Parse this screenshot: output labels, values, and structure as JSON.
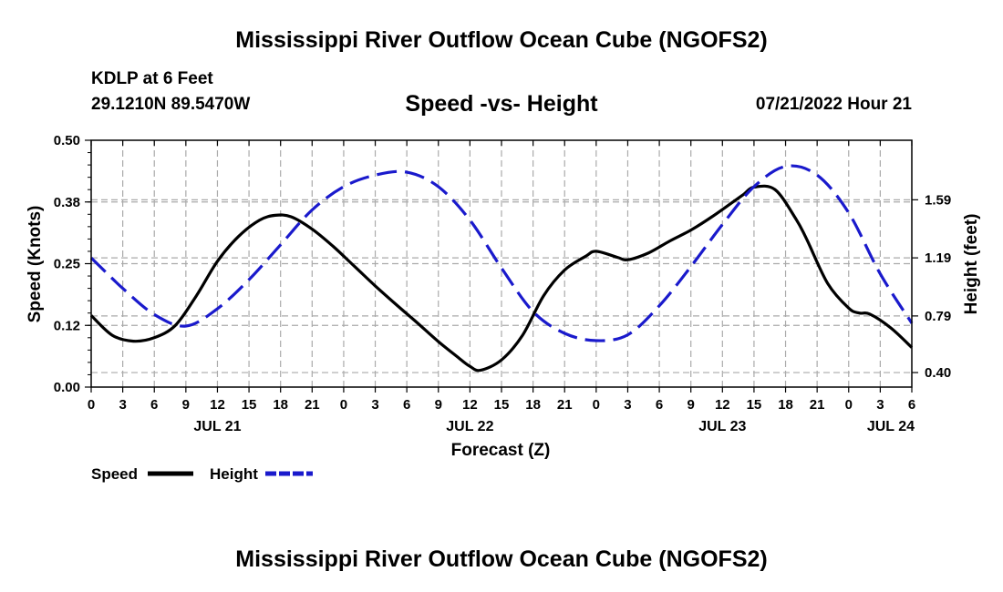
{
  "header": {
    "title": "Mississippi River Outflow Ocean Cube (NGOFS2)",
    "station": "KDLP at 6 Feet",
    "coords": "29.1210N  89.5470W",
    "subtitle": "Speed -vs- Height",
    "datetime": "07/21/2022 Hour 21"
  },
  "footer": {
    "title": "Mississippi River Outflow Ocean Cube (NGOFS2)"
  },
  "colors": {
    "speed": "#000000",
    "height": "#1a1acc",
    "grid": "#aaaaaa"
  },
  "chart_data": {
    "type": "line",
    "title": "Speed -vs- Height",
    "xlabel": "Forecast (Z)",
    "ylabel": "Speed (Knots)",
    "y2label": "Height (feet)",
    "x_range_hours": [
      0,
      78
    ],
    "ylim": [
      0,
      0.5
    ],
    "y2lim": [
      0.3,
      2.0
    ],
    "x_tick_hours": [
      0,
      3,
      6,
      9,
      12,
      15,
      18,
      21,
      24,
      27,
      30,
      33,
      36,
      39,
      42,
      45,
      48,
      51,
      54,
      57,
      60,
      63,
      66,
      69,
      72,
      75,
      78
    ],
    "x_tick_labels": [
      "0",
      "3",
      "6",
      "9",
      "12",
      "15",
      "18",
      "21",
      "0",
      "3",
      "6",
      "9",
      "12",
      "15",
      "18",
      "21",
      "0",
      "3",
      "6",
      "9",
      "12",
      "15",
      "18",
      "21",
      "0",
      "3",
      "6"
    ],
    "date_labels": [
      {
        "hour": 12,
        "label": "JUL 21"
      },
      {
        "hour": 36,
        "label": "JUL 22"
      },
      {
        "hour": 60,
        "label": "JUL 23"
      },
      {
        "hour": 76,
        "label": "JUL 24"
      }
    ],
    "y_ticks": [
      0.0,
      0.125,
      0.25,
      0.375,
      0.5
    ],
    "y_tick_labels": [
      "0.00",
      "0.12",
      "0.25",
      "0.38",
      "0.50"
    ],
    "y2_ticks": [
      0.4,
      0.79,
      1.19,
      1.59
    ],
    "y2_tick_labels": [
      "0.40",
      "0.79",
      "1.19",
      "1.59"
    ],
    "legend": [
      "Speed",
      "Height"
    ],
    "series": [
      {
        "name": "Speed",
        "axis": "left",
        "style": "solid",
        "x": [
          0,
          2,
          4,
          6,
          8,
          10,
          12,
          14,
          16,
          17.5,
          19,
          21,
          23,
          25,
          27,
          29,
          31,
          33,
          35,
          36,
          37,
          39,
          41,
          43,
          45,
          47,
          48,
          50,
          51,
          53,
          55,
          57,
          59,
          61,
          62,
          63,
          65,
          67,
          68,
          70,
          72,
          73,
          74,
          76,
          78
        ],
        "values": [
          0.145,
          0.105,
          0.093,
          0.1,
          0.125,
          0.185,
          0.255,
          0.305,
          0.338,
          0.348,
          0.345,
          0.32,
          0.285,
          0.245,
          0.205,
          0.167,
          0.13,
          0.092,
          0.058,
          0.042,
          0.034,
          0.055,
          0.105,
          0.185,
          0.237,
          0.265,
          0.275,
          0.263,
          0.258,
          0.272,
          0.296,
          0.318,
          0.345,
          0.375,
          0.39,
          0.405,
          0.4,
          0.34,
          0.3,
          0.21,
          0.16,
          0.15,
          0.148,
          0.12,
          0.08
        ]
      },
      {
        "name": "Height",
        "axis": "right",
        "style": "dashed",
        "x": [
          0,
          3,
          6,
          9,
          12,
          15,
          18,
          21,
          24,
          27,
          30,
          33,
          36,
          39,
          42,
          45,
          48,
          51,
          54,
          57,
          60,
          63,
          66,
          69,
          72,
          75,
          78
        ],
        "values": [
          1.19,
          0.98,
          0.8,
          0.72,
          0.84,
          1.04,
          1.28,
          1.52,
          1.68,
          1.76,
          1.78,
          1.68,
          1.45,
          1.12,
          0.82,
          0.67,
          0.62,
          0.66,
          0.86,
          1.13,
          1.42,
          1.68,
          1.82,
          1.76,
          1.5,
          1.08,
          0.74
        ]
      }
    ]
  }
}
